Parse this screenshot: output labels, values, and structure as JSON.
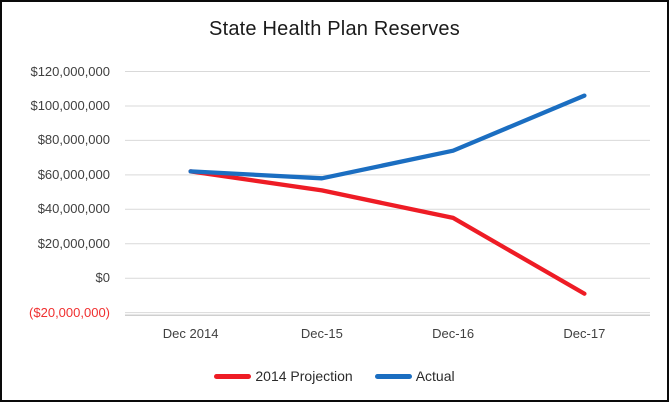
{
  "chart_data": {
    "type": "line",
    "title": "State Health Plan Reserves",
    "categories": [
      "Dec 2014",
      "Dec-15",
      "Dec-16",
      "Dec-17"
    ],
    "series": [
      {
        "name": "2014 Projection",
        "color": "#EE1C25",
        "values": [
          62000000,
          51000000,
          35000000,
          -9000000
        ]
      },
      {
        "name": "Actual",
        "color": "#1B6EC1",
        "values": [
          62000000,
          58000000,
          74000000,
          106000000
        ]
      }
    ],
    "y_axis": {
      "min": -20000000,
      "max": 120000000,
      "tick_interval": 20000000,
      "ticks": [
        {
          "value": 120000000,
          "label": "$120,000,000",
          "negative": false
        },
        {
          "value": 100000000,
          "label": "$100,000,000",
          "negative": false
        },
        {
          "value": 80000000,
          "label": "$80,000,000",
          "negative": false
        },
        {
          "value": 60000000,
          "label": "$60,000,000",
          "negative": false
        },
        {
          "value": 40000000,
          "label": "$40,000,000",
          "negative": false
        },
        {
          "value": 20000000,
          "label": "$20,000,000",
          "negative": false
        },
        {
          "value": 0,
          "label": "$0",
          "negative": false
        },
        {
          "value": -20000000,
          "label": "($20,000,000)",
          "negative": true
        }
      ]
    },
    "legend": {
      "position": "bottom",
      "entries": [
        "2014 Projection",
        "Actual"
      ]
    },
    "grid": true,
    "colors": {
      "gridline": "#D9D9D9",
      "axis_line": "#BFBFBF",
      "tick_label": "#404040",
      "negative_tick_label": "#F03030",
      "title": "#1A1A1A"
    }
  }
}
